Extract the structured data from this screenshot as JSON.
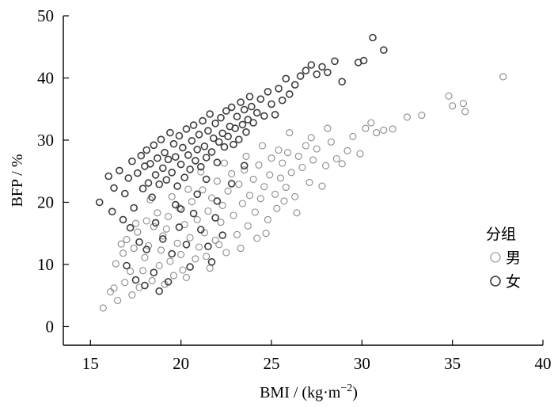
{
  "chart_data": {
    "type": "scatter",
    "title": "",
    "xlabel": "BMI / (kg·m",
    "xlabel_sup": "−2",
    "xlabel_close": ")",
    "ylabel": "BFP / %",
    "xlim": [
      13.5,
      40
    ],
    "ylim": [
      -3,
      50
    ],
    "xticks": [
      15,
      20,
      25,
      30,
      35,
      40
    ],
    "yticks": [
      0,
      10,
      20,
      30,
      40,
      50
    ],
    "grid": false,
    "legend": {
      "title": "分组",
      "placement": "right",
      "entries": [
        "男",
        "女"
      ]
    },
    "series": [
      {
        "name": "男",
        "color": "#8a8a8a",
        "marker": "open-circle",
        "points": [
          [
            15.7,
            3.0
          ],
          [
            16.1,
            5.6
          ],
          [
            16.3,
            6.2
          ],
          [
            16.5,
            4.2
          ],
          [
            16.9,
            7.1
          ],
          [
            16.4,
            10.1
          ],
          [
            16.8,
            11.8
          ],
          [
            17.2,
            8.9
          ],
          [
            17.4,
            12.6
          ],
          [
            17.0,
            14.0
          ],
          [
            17.3,
            5.1
          ],
          [
            17.7,
            6.3
          ],
          [
            17.9,
            9.0
          ],
          [
            17.6,
            15.2
          ],
          [
            18.0,
            11.1
          ],
          [
            18.2,
            13.0
          ],
          [
            18.4,
            7.4
          ],
          [
            18.5,
            16.1
          ],
          [
            18.8,
            9.8
          ],
          [
            18.9,
            12.3
          ],
          [
            19.1,
            6.8
          ],
          [
            19.0,
            14.6
          ],
          [
            19.3,
            17.7
          ],
          [
            19.4,
            10.5
          ],
          [
            19.6,
            8.2
          ],
          [
            19.8,
            13.4
          ],
          [
            19.9,
            19.1
          ],
          [
            20.0,
            11.6
          ],
          [
            20.2,
            16.4
          ],
          [
            20.3,
            7.9
          ],
          [
            20.5,
            14.3
          ],
          [
            20.6,
            20.1
          ],
          [
            20.8,
            10.9
          ],
          [
            20.9,
            17.2
          ],
          [
            21.0,
            12.8
          ],
          [
            21.2,
            22.0
          ],
          [
            21.3,
            15.1
          ],
          [
            21.5,
            18.6
          ],
          [
            21.6,
            9.4
          ],
          [
            21.7,
            20.7
          ],
          [
            21.9,
            13.9
          ],
          [
            22.0,
            23.4
          ],
          [
            22.2,
            16.8
          ],
          [
            22.3,
            19.5
          ],
          [
            22.5,
            11.9
          ],
          [
            22.6,
            21.8
          ],
          [
            22.8,
            24.6
          ],
          [
            22.9,
            17.9
          ],
          [
            23.1,
            14.8
          ],
          [
            23.2,
            22.9
          ],
          [
            23.4,
            19.8
          ],
          [
            23.5,
            25.2
          ],
          [
            23.7,
            16.2
          ],
          [
            23.8,
            21.1
          ],
          [
            24.0,
            23.7
          ],
          [
            24.1,
            18.4
          ],
          [
            24.3,
            26.0
          ],
          [
            24.4,
            20.6
          ],
          [
            24.6,
            22.5
          ],
          [
            24.7,
            15.0
          ],
          [
            24.9,
            24.4
          ],
          [
            25.0,
            27.1
          ],
          [
            25.2,
            21.3
          ],
          [
            25.3,
            19.0
          ],
          [
            25.5,
            23.9
          ],
          [
            25.6,
            26.3
          ],
          [
            25.8,
            22.4
          ],
          [
            25.9,
            28.0
          ],
          [
            26.1,
            24.8
          ],
          [
            26.3,
            20.9
          ],
          [
            26.5,
            27.4
          ],
          [
            26.7,
            25.6
          ],
          [
            26.9,
            29.1
          ],
          [
            27.1,
            23.2
          ],
          [
            27.3,
            26.8
          ],
          [
            27.5,
            28.6
          ],
          [
            27.8,
            22.6
          ],
          [
            28.0,
            25.9
          ],
          [
            28.3,
            29.7
          ],
          [
            28.6,
            27.0
          ],
          [
            28.9,
            26.2
          ],
          [
            29.2,
            28.3
          ],
          [
            29.5,
            30.6
          ],
          [
            29.9,
            27.8
          ],
          [
            30.2,
            31.9
          ],
          [
            30.5,
            32.8
          ],
          [
            30.8,
            31.2
          ],
          [
            31.2,
            31.6
          ],
          [
            31.7,
            31.8
          ],
          [
            32.5,
            33.7
          ],
          [
            33.3,
            34.0
          ],
          [
            34.8,
            37.1
          ],
          [
            35.0,
            35.5
          ],
          [
            35.6,
            35.9
          ],
          [
            35.7,
            34.6
          ],
          [
            37.8,
            40.2
          ],
          [
            26.0,
            31.2
          ],
          [
            25.4,
            28.4
          ],
          [
            27.2,
            30.4
          ],
          [
            28.1,
            31.9
          ],
          [
            24.5,
            29.1
          ],
          [
            23.6,
            27.4
          ],
          [
            22.4,
            26.3
          ],
          [
            21.1,
            24.9
          ],
          [
            20.4,
            22.1
          ],
          [
            19.5,
            20.9
          ],
          [
            18.7,
            18.3
          ],
          [
            18.1,
            17.0
          ],
          [
            17.5,
            16.6
          ],
          [
            16.7,
            13.3
          ],
          [
            20.1,
            9.1
          ],
          [
            21.4,
            11.3
          ],
          [
            22.1,
            13.2
          ],
          [
            19.2,
            15.7
          ],
          [
            18.3,
            20.4
          ],
          [
            24.8,
            17.2
          ],
          [
            25.7,
            20.2
          ],
          [
            26.4,
            18.3
          ],
          [
            23.3,
            12.6
          ],
          [
            24.2,
            14.2
          ]
        ]
      },
      {
        "name": "女",
        "color": "#3c3c3c",
        "marker": "open-circle",
        "points": [
          [
            15.5,
            20.0
          ],
          [
            16.0,
            24.2
          ],
          [
            16.3,
            22.3
          ],
          [
            16.6,
            25.1
          ],
          [
            16.9,
            21.4
          ],
          [
            17.1,
            23.9
          ],
          [
            17.3,
            26.6
          ],
          [
            17.4,
            19.1
          ],
          [
            17.6,
            24.7
          ],
          [
            17.8,
            27.5
          ],
          [
            17.9,
            22.2
          ],
          [
            18.0,
            25.8
          ],
          [
            18.1,
            28.4
          ],
          [
            18.2,
            23.1
          ],
          [
            18.3,
            26.2
          ],
          [
            18.4,
            20.8
          ],
          [
            18.5,
            29.2
          ],
          [
            18.6,
            24.4
          ],
          [
            18.7,
            27.1
          ],
          [
            18.8,
            22.9
          ],
          [
            18.9,
            30.1
          ],
          [
            19.0,
            25.5
          ],
          [
            19.1,
            28.0
          ],
          [
            19.2,
            23.6
          ],
          [
            19.3,
            26.9
          ],
          [
            19.4,
            31.2
          ],
          [
            19.5,
            24.8
          ],
          [
            19.6,
            29.4
          ],
          [
            19.7,
            27.3
          ],
          [
            19.8,
            22.6
          ],
          [
            19.9,
            30.7
          ],
          [
            20.0,
            26.1
          ],
          [
            20.1,
            28.8
          ],
          [
            20.2,
            24.0
          ],
          [
            20.3,
            31.8
          ],
          [
            20.4,
            27.6
          ],
          [
            20.5,
            25.3
          ],
          [
            20.6,
            29.9
          ],
          [
            20.7,
            32.4
          ],
          [
            20.8,
            26.7
          ],
          [
            20.9,
            28.5
          ],
          [
            21.0,
            30.9
          ],
          [
            21.1,
            25.7
          ],
          [
            21.2,
            33.1
          ],
          [
            21.3,
            29.0
          ],
          [
            21.4,
            27.2
          ],
          [
            21.5,
            31.5
          ],
          [
            21.6,
            34.2
          ],
          [
            21.7,
            28.1
          ],
          [
            21.8,
            30.3
          ],
          [
            21.9,
            32.7
          ],
          [
            22.0,
            26.4
          ],
          [
            22.1,
            29.7
          ],
          [
            22.2,
            33.6
          ],
          [
            22.3,
            31.1
          ],
          [
            22.4,
            28.9
          ],
          [
            22.5,
            34.7
          ],
          [
            22.6,
            30.6
          ],
          [
            22.7,
            32.2
          ],
          [
            22.8,
            35.3
          ],
          [
            22.9,
            29.3
          ],
          [
            23.0,
            31.9
          ],
          [
            23.1,
            33.8
          ],
          [
            23.2,
            30.1
          ],
          [
            23.3,
            36.1
          ],
          [
            23.4,
            32.5
          ],
          [
            23.5,
            34.9
          ],
          [
            23.6,
            31.3
          ],
          [
            23.7,
            33.3
          ],
          [
            23.8,
            37.0
          ],
          [
            23.9,
            35.4
          ],
          [
            24.0,
            32.8
          ],
          [
            24.2,
            34.4
          ],
          [
            24.4,
            36.6
          ],
          [
            24.6,
            33.9
          ],
          [
            24.8,
            37.8
          ],
          [
            25.0,
            35.8
          ],
          [
            25.2,
            34.1
          ],
          [
            25.4,
            38.3
          ],
          [
            25.6,
            36.4
          ],
          [
            25.8,
            39.9
          ],
          [
            26.0,
            37.4
          ],
          [
            26.3,
            38.9
          ],
          [
            26.6,
            40.3
          ],
          [
            26.9,
            41.2
          ],
          [
            27.2,
            42.1
          ],
          [
            27.5,
            40.6
          ],
          [
            27.8,
            41.8
          ],
          [
            28.1,
            40.9
          ],
          [
            28.5,
            42.7
          ],
          [
            28.9,
            39.4
          ],
          [
            29.8,
            42.5
          ],
          [
            30.1,
            42.8
          ],
          [
            30.6,
            46.5
          ],
          [
            31.2,
            44.5
          ],
          [
            16.2,
            18.5
          ],
          [
            16.8,
            17.2
          ],
          [
            17.2,
            15.9
          ],
          [
            17.7,
            13.6
          ],
          [
            18.1,
            12.4
          ],
          [
            18.6,
            16.7
          ],
          [
            19.0,
            14.1
          ],
          [
            19.5,
            11.7
          ],
          [
            19.9,
            16.0
          ],
          [
            20.3,
            13.2
          ],
          [
            20.7,
            18.2
          ],
          [
            21.1,
            15.6
          ],
          [
            21.5,
            12.9
          ],
          [
            21.9,
            17.5
          ],
          [
            22.3,
            14.7
          ],
          [
            17.0,
            9.8
          ],
          [
            17.5,
            7.5
          ],
          [
            18.0,
            6.6
          ],
          [
            18.5,
            8.7
          ],
          [
            19.3,
            7.2
          ],
          [
            20.5,
            9.6
          ],
          [
            21.7,
            10.4
          ],
          [
            18.8,
            5.7
          ],
          [
            19.7,
            19.6
          ],
          [
            20.9,
            21.3
          ],
          [
            22.0,
            20.2
          ],
          [
            22.8,
            23.0
          ],
          [
            23.5,
            25.9
          ],
          [
            21.4,
            23.7
          ],
          [
            20.0,
            18.9
          ]
        ]
      }
    ]
  }
}
